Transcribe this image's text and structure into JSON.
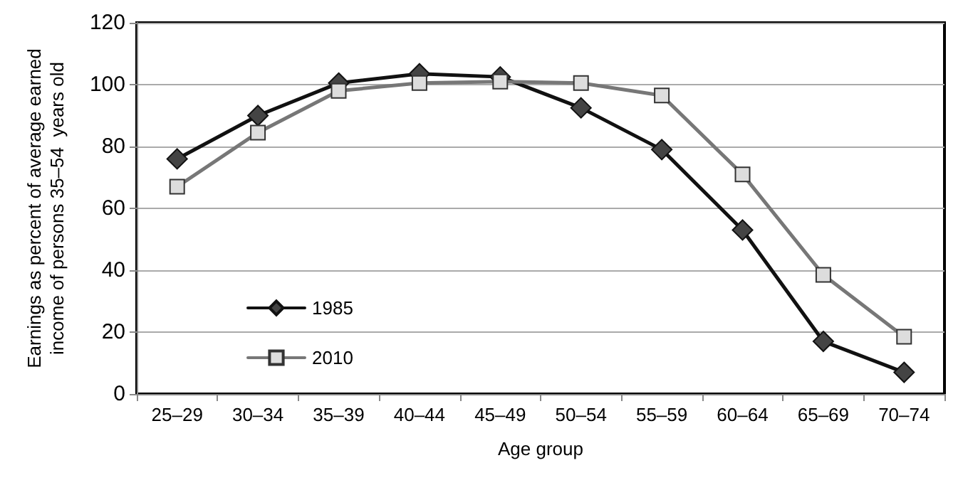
{
  "chart_data": {
    "type": "line",
    "xlabel": "Age group",
    "ylabel": "Earnings as percent of average earned\nincome of persons 35–54  years old",
    "categories": [
      "25–29",
      "30–34",
      "35–39",
      "40–44",
      "45–49",
      "50–54",
      "55–59",
      "60–64",
      "65–69",
      "70–74"
    ],
    "series": [
      {
        "name": "1985",
        "color": "#111111",
        "marker": "diamond",
        "values": [
          76,
          90,
          100.5,
          103.5,
          102.5,
          92.5,
          79,
          53,
          17,
          7
        ]
      },
      {
        "name": "2010",
        "color": "#777777",
        "marker": "square",
        "values": [
          67,
          84.5,
          98,
          100.5,
          101,
          100.5,
          96.5,
          71,
          38.5,
          18.5
        ]
      }
    ],
    "ylim": [
      0,
      120
    ],
    "yticks": [
      0,
      20,
      40,
      60,
      80,
      100,
      120
    ],
    "grid": "y",
    "legend": "bottom left",
    "line_style": "solid"
  }
}
